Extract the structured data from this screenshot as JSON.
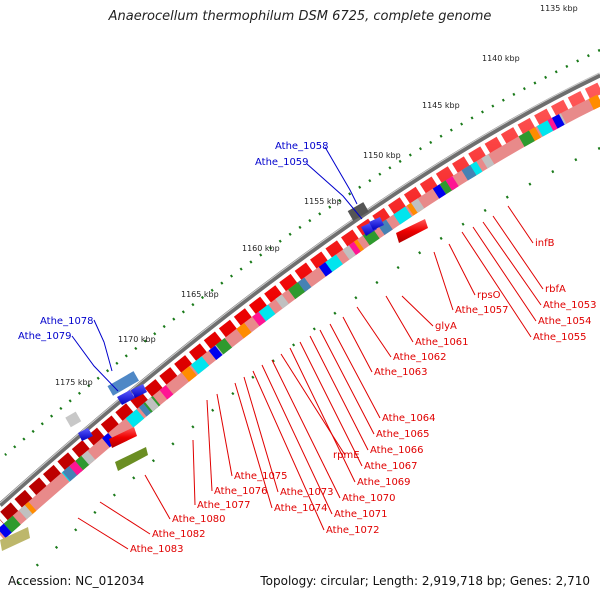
{
  "title": "Anaerocellum thermophilum DSM 6725, complete genome",
  "footer": {
    "accession": "Accession: NC_012034",
    "summary": "Topology: circular; Length: 2,919,718 bp; Genes: 2,710"
  },
  "colors": {
    "backbone": "#7f7f7f",
    "tick_dots": "#1a7a1a",
    "forward_gene": "#ee0000",
    "reverse_gene": "#0000ee",
    "label_red": "#e00000",
    "label_blue": "#0000cc"
  },
  "scale_ticks": [
    "1135 kbp",
    "1140 kbp",
    "1145 kbp",
    "1150 kbp",
    "1155 kbp",
    "1160 kbp",
    "1165 kbp",
    "1170 kbp",
    "1175 kbp"
  ],
  "gene_labels_forward": [
    "infB",
    "rbfA",
    "Athe_1053",
    "Athe_1054",
    "Athe_1055",
    "rpsO",
    "Athe_1057",
    "glyA",
    "Athe_1061",
    "Athe_1062",
    "Athe_1063",
    "Athe_1064",
    "Athe_1065",
    "Athe_1066",
    "Athe_1067",
    "Athe_1069",
    "rpmE",
    "Athe_1070",
    "Athe_1071",
    "Athe_1072",
    "Athe_1073",
    "Athe_1074",
    "Athe_1075",
    "Athe_1076",
    "Athe_1077",
    "Athe_1080",
    "Athe_1082",
    "Athe_1083"
  ],
  "gene_labels_reverse": [
    "Athe_1058",
    "Athe_1059",
    "Athe_1078",
    "Athe_1079"
  ]
}
